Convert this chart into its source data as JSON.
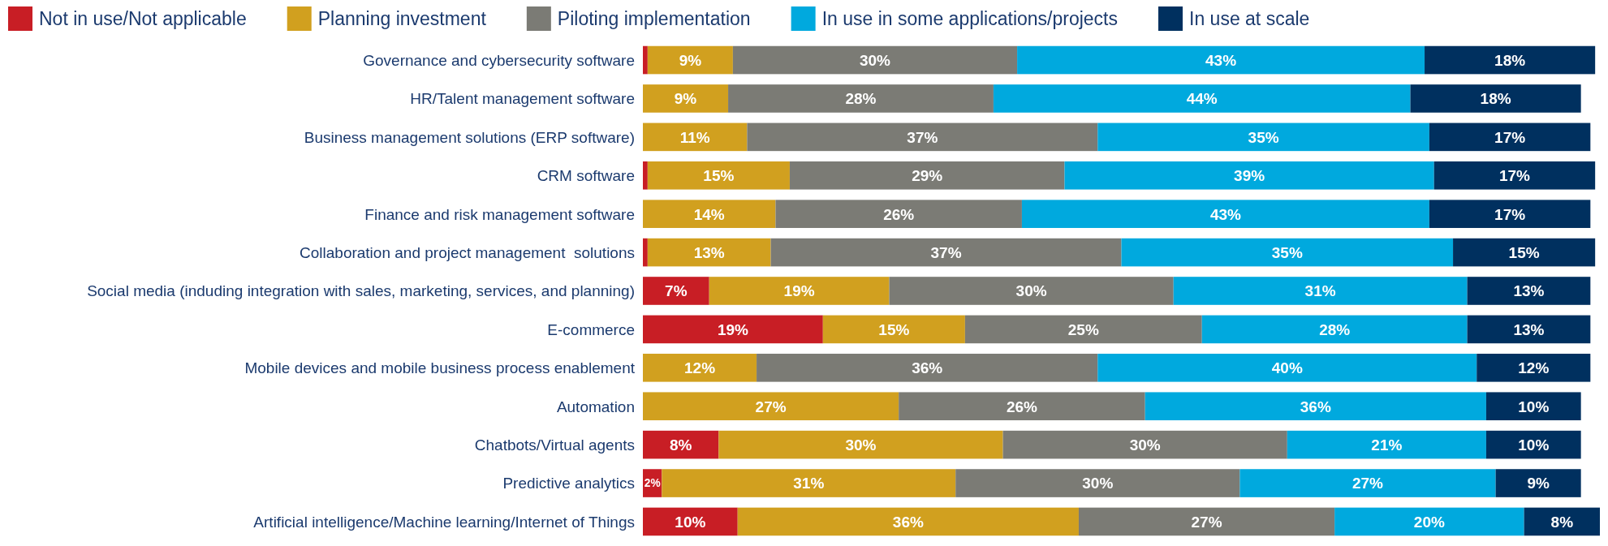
{
  "chart_data": {
    "type": "bar",
    "orientation": "horizontal",
    "stacked": true,
    "legend": "top left",
    "categories": [
      "Governance and cybersecurity software",
      "HR/Talent management software",
      "Business management solutions (ERP software)",
      "CRM software",
      "Finance and risk management software",
      "Collaboration and project management  solutions",
      "Social media (induding integration with sales, marketing, services, and planning)",
      "E-commerce",
      "Mobile devices and mobile business process enablement",
      "Automation",
      "Chatbots/Virtual agents",
      "Predictive analytics",
      "Artificial intelligence/Machine learning/Internet of Things"
    ],
    "series": [
      {
        "name": "Not in use/Not applicable",
        "color": "#c81e25",
        "values": [
          0.5,
          null,
          null,
          0.5,
          null,
          0.5,
          7,
          19,
          null,
          null,
          8,
          2,
          10
        ],
        "value_labels": [
          null,
          null,
          null,
          null,
          null,
          null,
          "7%",
          "19%",
          null,
          null,
          "8%",
          "2%",
          "10%"
        ]
      },
      {
        "name": "Planning investment",
        "color": "#d1a01f",
        "values": [
          9,
          9,
          11,
          15,
          14,
          13,
          19,
          15,
          12,
          27,
          30,
          31,
          36
        ],
        "value_labels": [
          "9%",
          "9%",
          "11%",
          "15%",
          "14%",
          "13%",
          "19%",
          "15%",
          "12%",
          "27%",
          "30%",
          "31%",
          "36%"
        ]
      },
      {
        "name": "Piloting implementation",
        "color": "#7b7b75",
        "values": [
          30,
          28,
          37,
          29,
          26,
          37,
          30,
          25,
          36,
          26,
          30,
          30,
          27
        ],
        "value_labels": [
          "30%",
          "28%",
          "37%",
          "29%",
          "26%",
          "37%",
          "30%",
          "25%",
          "36%",
          "26%",
          "30%",
          "30%",
          "27%"
        ]
      },
      {
        "name": "In use in some applications/projects",
        "color": "#00a9de",
        "values": [
          43,
          44,
          35,
          39,
          43,
          35,
          31,
          28,
          40,
          36,
          21,
          27,
          20
        ],
        "value_labels": [
          "43%",
          "44%",
          "35%",
          "39%",
          "43%",
          "35%",
          "31%",
          "28%",
          "40%",
          "36%",
          "21%",
          "27%",
          "20%"
        ]
      },
      {
        "name": "In use at scale",
        "color": "#00305f",
        "values": [
          18,
          18,
          17,
          17,
          17,
          15,
          13,
          13,
          12,
          10,
          10,
          9,
          8
        ],
        "value_labels": [
          "18%",
          "18%",
          "17%",
          "17%",
          "17%",
          "15%",
          "13%",
          "13%",
          "12%",
          "10%",
          "10%",
          "9%",
          "8%"
        ]
      }
    ]
  }
}
